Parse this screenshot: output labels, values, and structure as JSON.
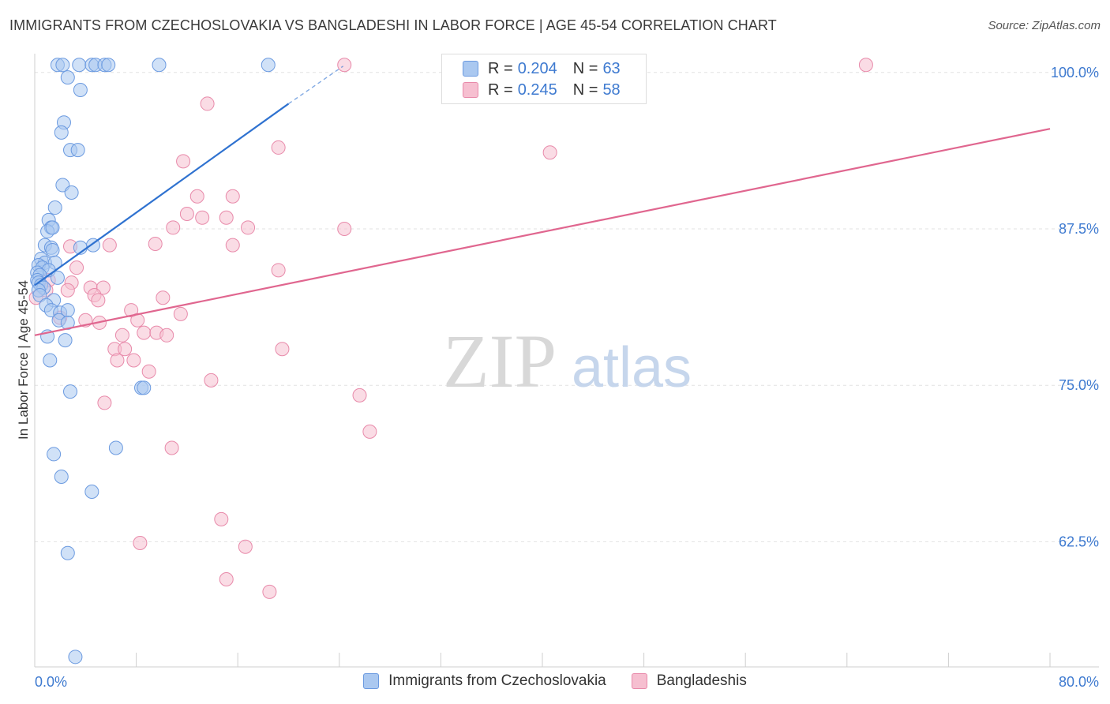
{
  "header": {
    "title": "IMMIGRANTS FROM CZECHOSLOVAKIA VS BANGLADESHI IN LABOR FORCE | AGE 45-54 CORRELATION CHART",
    "source": "Source: ZipAtlas.com"
  },
  "watermark": {
    "zip": "ZIP",
    "atlas": "atlas"
  },
  "legend": {
    "rows": [
      {
        "r_label": "R = ",
        "r_value": "0.204",
        "n_label": "N = ",
        "n_value": "63"
      },
      {
        "r_label": "R = ",
        "r_value": "0.245",
        "n_label": "N = ",
        "n_value": "58"
      }
    ]
  },
  "bottom_legend": {
    "series1": "Immigrants from Czechoslovakia",
    "series2": "Bangladeshis"
  },
  "colors": {
    "blue_fill": "#aac8f0",
    "blue_stroke": "#6b9ae0",
    "blue_line": "#2f72d0",
    "pink_fill": "#f6bfd0",
    "pink_stroke": "#e88aaa",
    "pink_line": "#e0668f",
    "tick_label": "#3e7ad0",
    "grid": "#e2e2e2"
  },
  "chart_data": {
    "type": "scatter",
    "title": "IMMIGRANTS FROM CZECHOSLOVAKIA VS BANGLADESHI IN LABOR FORCE | AGE 45-54 CORRELATION CHART",
    "xlabel": "",
    "ylabel": "In Labor Force | Age 45-54",
    "xlim": [
      0,
      80
    ],
    "ylim": [
      52.5,
      101.5
    ],
    "x_tick_labels": [
      "0.0%",
      "80.0%"
    ],
    "y_ticks": [
      62.5,
      75.0,
      87.5,
      100.0
    ],
    "y_tick_labels": [
      "62.5%",
      "75.0%",
      "87.5%",
      "100.0%"
    ],
    "series": [
      {
        "name": "Immigrants from Czechoslovakia",
        "R": 0.204,
        "N": 63,
        "trend": {
          "x": [
            0.0,
            20.0
          ],
          "y": [
            83.0,
            97.5
          ],
          "dashed_to": {
            "x": 24.3,
            "y": 100.5
          }
        },
        "points": [
          [
            1.8,
            100.6
          ],
          [
            2.2,
            100.6
          ],
          [
            3.5,
            100.6
          ],
          [
            4.5,
            100.6
          ],
          [
            4.8,
            100.6
          ],
          [
            5.5,
            100.6
          ],
          [
            5.8,
            100.6
          ],
          [
            9.8,
            100.6
          ],
          [
            18.4,
            100.6
          ],
          [
            2.6,
            99.6
          ],
          [
            3.6,
            98.6
          ],
          [
            2.3,
            96.0
          ],
          [
            2.1,
            95.2
          ],
          [
            2.8,
            93.8
          ],
          [
            3.4,
            93.8
          ],
          [
            2.2,
            91.0
          ],
          [
            2.9,
            90.4
          ],
          [
            1.6,
            89.2
          ],
          [
            1.1,
            88.2
          ],
          [
            1.3,
            87.6
          ],
          [
            1.0,
            87.3
          ],
          [
            1.4,
            87.6
          ],
          [
            0.8,
            86.2
          ],
          [
            1.3,
            86.0
          ],
          [
            1.4,
            85.8
          ],
          [
            4.6,
            86.2
          ],
          [
            3.6,
            86.0
          ],
          [
            0.5,
            85.1
          ],
          [
            0.8,
            84.8
          ],
          [
            1.6,
            84.8
          ],
          [
            0.3,
            84.6
          ],
          [
            0.6,
            84.4
          ],
          [
            1.1,
            84.2
          ],
          [
            0.2,
            84.0
          ],
          [
            0.4,
            83.8
          ],
          [
            1.8,
            83.6
          ],
          [
            0.2,
            83.4
          ],
          [
            0.3,
            83.2
          ],
          [
            0.5,
            83.0
          ],
          [
            0.7,
            82.8
          ],
          [
            0.3,
            82.6
          ],
          [
            0.4,
            82.2
          ],
          [
            1.5,
            81.8
          ],
          [
            0.9,
            81.4
          ],
          [
            1.3,
            81.0
          ],
          [
            2.0,
            80.8
          ],
          [
            2.6,
            81.0
          ],
          [
            1.9,
            80.2
          ],
          [
            2.6,
            80.0
          ],
          [
            1.0,
            78.9
          ],
          [
            2.4,
            78.6
          ],
          [
            1.2,
            77.0
          ],
          [
            8.4,
            74.8
          ],
          [
            8.6,
            74.8
          ],
          [
            2.8,
            74.5
          ],
          [
            6.4,
            70.0
          ],
          [
            1.5,
            69.5
          ],
          [
            2.1,
            67.7
          ],
          [
            4.5,
            66.5
          ],
          [
            2.6,
            61.6
          ],
          [
            3.2,
            53.3
          ]
        ]
      },
      {
        "name": "Bangladeshis",
        "R": 0.245,
        "N": 58,
        "trend": {
          "x": [
            0.0,
            80.0
          ],
          "y": [
            79.0,
            95.5
          ]
        },
        "points": [
          [
            24.4,
            100.6
          ],
          [
            65.5,
            100.6
          ],
          [
            13.6,
            97.5
          ],
          [
            19.2,
            94.0
          ],
          [
            11.7,
            92.9
          ],
          [
            40.6,
            93.6
          ],
          [
            12.8,
            90.1
          ],
          [
            15.6,
            90.1
          ],
          [
            12.0,
            88.7
          ],
          [
            13.2,
            88.4
          ],
          [
            15.1,
            88.4
          ],
          [
            10.9,
            87.6
          ],
          [
            16.8,
            87.6
          ],
          [
            24.4,
            87.5
          ],
          [
            9.5,
            86.3
          ],
          [
            5.9,
            86.2
          ],
          [
            15.6,
            86.2
          ],
          [
            2.8,
            86.1
          ],
          [
            19.2,
            84.2
          ],
          [
            3.3,
            84.4
          ],
          [
            1.1,
            83.4
          ],
          [
            2.9,
            83.2
          ],
          [
            4.4,
            82.8
          ],
          [
            5.4,
            82.8
          ],
          [
            2.6,
            82.6
          ],
          [
            0.9,
            82.6
          ],
          [
            4.7,
            82.2
          ],
          [
            5.0,
            81.8
          ],
          [
            10.1,
            82.0
          ],
          [
            7.6,
            81.0
          ],
          [
            11.5,
            80.7
          ],
          [
            2.0,
            80.4
          ],
          [
            4.0,
            80.2
          ],
          [
            5.1,
            80.0
          ],
          [
            8.1,
            80.2
          ],
          [
            8.6,
            79.2
          ],
          [
            9.6,
            79.2
          ],
          [
            10.4,
            79.0
          ],
          [
            6.9,
            79.0
          ],
          [
            6.3,
            77.9
          ],
          [
            7.1,
            77.9
          ],
          [
            19.5,
            77.9
          ],
          [
            6.5,
            77.0
          ],
          [
            7.8,
            77.0
          ],
          [
            9.0,
            76.1
          ],
          [
            13.9,
            75.4
          ],
          [
            25.6,
            74.2
          ],
          [
            5.5,
            73.6
          ],
          [
            26.4,
            71.3
          ],
          [
            10.8,
            70.0
          ],
          [
            14.7,
            64.3
          ],
          [
            8.3,
            62.4
          ],
          [
            16.6,
            62.1
          ],
          [
            15.1,
            59.5
          ],
          [
            18.5,
            58.5
          ],
          [
            0.1,
            82.0
          ]
        ]
      }
    ]
  }
}
